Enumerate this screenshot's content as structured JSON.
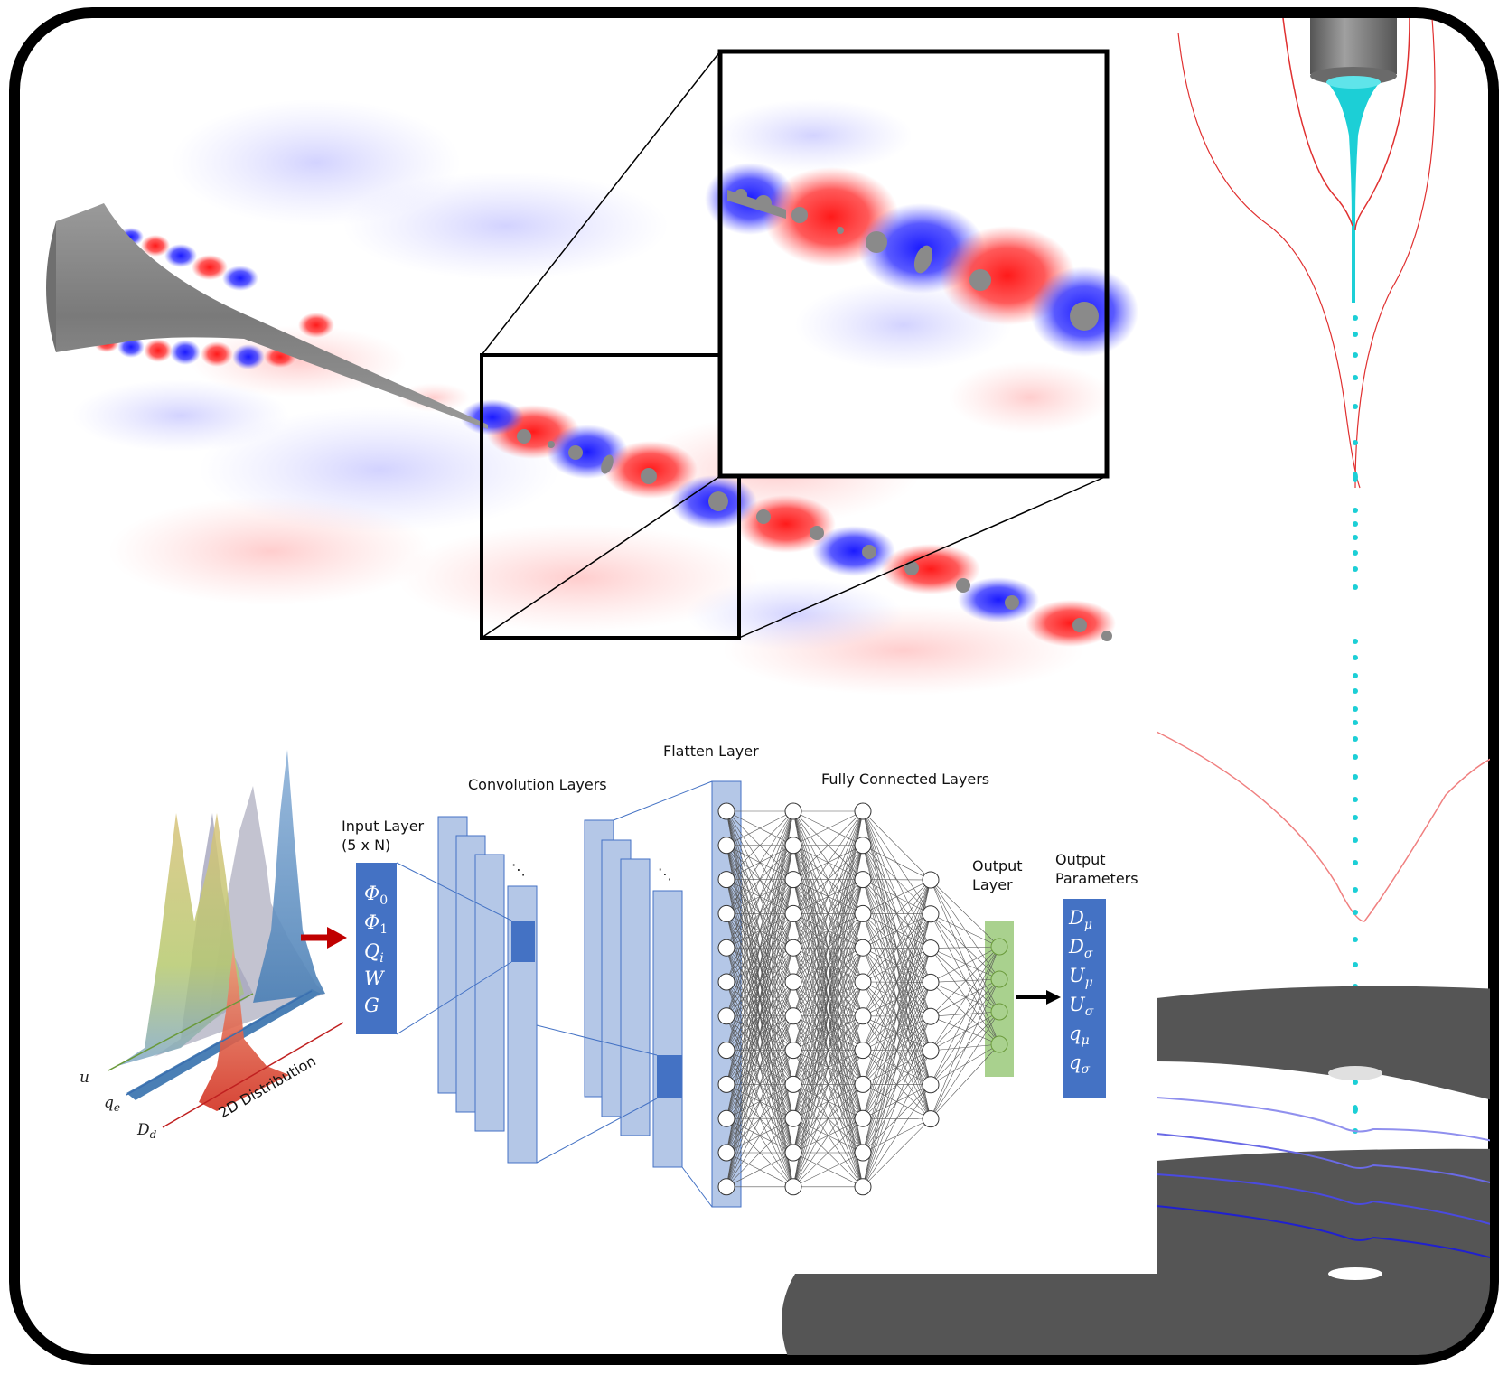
{
  "network": {
    "input_layer_label": [
      "Input Layer",
      "(5 x N)"
    ],
    "input_params": [
      "Φ",
      "Φ",
      "Q",
      "W",
      "G"
    ],
    "input_subs": [
      "0",
      "1",
      "i",
      "",
      ""
    ],
    "conv_label": "Convolution Layers",
    "flatten_label": "Flatten Layer",
    "fc_label": "Fully Connected Layers",
    "output_layer_label": [
      "Output",
      "Layer"
    ],
    "output_params_label": [
      "Output",
      "Parameters"
    ],
    "output_params": [
      "D",
      "D",
      "U",
      "U",
      "q",
      "q"
    ],
    "output_subs": [
      "μ",
      "σ",
      "μ",
      "σ",
      "μ",
      "σ"
    ],
    "ellipsis": "⋱"
  },
  "distribution": {
    "axis_u": "u",
    "axis_qe": "q",
    "axis_qe_sub": "e",
    "axis_dd": "D",
    "axis_dd_sub": "d",
    "caption": "2D Distribution"
  },
  "colors": {
    "layer_box": "#b4c7e7",
    "input_box": "#4472c4",
    "output_layer_box": "#a9d18e",
    "arrow_red": "#c00000",
    "jet_gray": "#8a8a8a",
    "droplet_cyan": "#1ccfd6",
    "red_field": "#ff2020",
    "blue_field": "#2020ff"
  }
}
